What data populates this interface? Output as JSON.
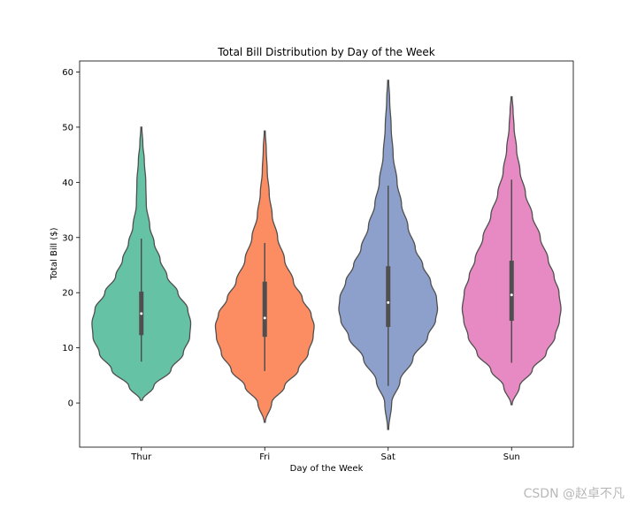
{
  "chart_data": {
    "type": "violin",
    "title": "Total Bill Distribution by Day of the Week",
    "xlabel": "Day of the Week",
    "ylabel": "Total Bill ($)",
    "ylim": [
      -8,
      62
    ],
    "yticks": [
      0,
      10,
      20,
      30,
      40,
      50,
      60
    ],
    "categories": [
      "Thur",
      "Fri",
      "Sat",
      "Sun"
    ],
    "series": [
      {
        "name": "Thur",
        "color": "#66c2a5",
        "min": 7.5,
        "q1": 12.3,
        "median": 16.2,
        "q3": 20.2,
        "max": 29.8,
        "violin_low": 0.5,
        "violin_high": 50,
        "density": [
          [
            0.5,
            0.02
          ],
          [
            3,
            0.25
          ],
          [
            6,
            0.6
          ],
          [
            9,
            0.85
          ],
          [
            12,
            0.98
          ],
          [
            14.5,
            1.0
          ],
          [
            17,
            0.94
          ],
          [
            20,
            0.74
          ],
          [
            23,
            0.52
          ],
          [
            26,
            0.38
          ],
          [
            29,
            0.26
          ],
          [
            32,
            0.17
          ],
          [
            36,
            0.1
          ],
          [
            40,
            0.09
          ],
          [
            44,
            0.06
          ],
          [
            47,
            0.03
          ],
          [
            50,
            0.01
          ]
        ]
      },
      {
        "name": "Fri",
        "color": "#fc8d62",
        "min": 5.8,
        "q1": 12.0,
        "median": 15.4,
        "q3": 22.0,
        "max": 29.0,
        "violin_low": -3.5,
        "violin_high": 49.3,
        "density": [
          [
            -3.5,
            0.01
          ],
          [
            0,
            0.14
          ],
          [
            3,
            0.4
          ],
          [
            6,
            0.68
          ],
          [
            9,
            0.88
          ],
          [
            12,
            0.98
          ],
          [
            14,
            1.0
          ],
          [
            16,
            0.94
          ],
          [
            19,
            0.76
          ],
          [
            22,
            0.58
          ],
          [
            26,
            0.4
          ],
          [
            30,
            0.26
          ],
          [
            34,
            0.15
          ],
          [
            38,
            0.09
          ],
          [
            42,
            0.05
          ],
          [
            46,
            0.03
          ],
          [
            49.3,
            0.01
          ]
        ]
      },
      {
        "name": "Sat",
        "color": "#8da0cb",
        "min": 3.1,
        "q1": 13.8,
        "median": 18.2,
        "q3": 24.8,
        "max": 39.4,
        "violin_low": -4.8,
        "violin_high": 58.5,
        "density": [
          [
            -4.8,
            0.01
          ],
          [
            0,
            0.07
          ],
          [
            4,
            0.24
          ],
          [
            8,
            0.5
          ],
          [
            12,
            0.8
          ],
          [
            15,
            0.96
          ],
          [
            17,
            1.0
          ],
          [
            19,
            0.98
          ],
          [
            22,
            0.86
          ],
          [
            25,
            0.7
          ],
          [
            28,
            0.55
          ],
          [
            32,
            0.4
          ],
          [
            36,
            0.27
          ],
          [
            40,
            0.18
          ],
          [
            45,
            0.1
          ],
          [
            50,
            0.06
          ],
          [
            55,
            0.03
          ],
          [
            58.5,
            0.01
          ]
        ]
      },
      {
        "name": "Sun",
        "color": "#e78ac3",
        "min": 7.3,
        "q1": 14.9,
        "median": 19.6,
        "q3": 25.8,
        "max": 40.5,
        "violin_low": -0.3,
        "violin_high": 55.5,
        "density": [
          [
            -0.3,
            0.01
          ],
          [
            3,
            0.16
          ],
          [
            6,
            0.42
          ],
          [
            9,
            0.7
          ],
          [
            12,
            0.88
          ],
          [
            15,
            0.97
          ],
          [
            17,
            1.0
          ],
          [
            20,
            0.96
          ],
          [
            23,
            0.86
          ],
          [
            26,
            0.74
          ],
          [
            30,
            0.58
          ],
          [
            34,
            0.42
          ],
          [
            38,
            0.28
          ],
          [
            42,
            0.17
          ],
          [
            46,
            0.1
          ],
          [
            50,
            0.05
          ],
          [
            53,
            0.03
          ],
          [
            55.5,
            0.01
          ]
        ]
      }
    ]
  },
  "watermark": "CSDN @赵卓不凡"
}
